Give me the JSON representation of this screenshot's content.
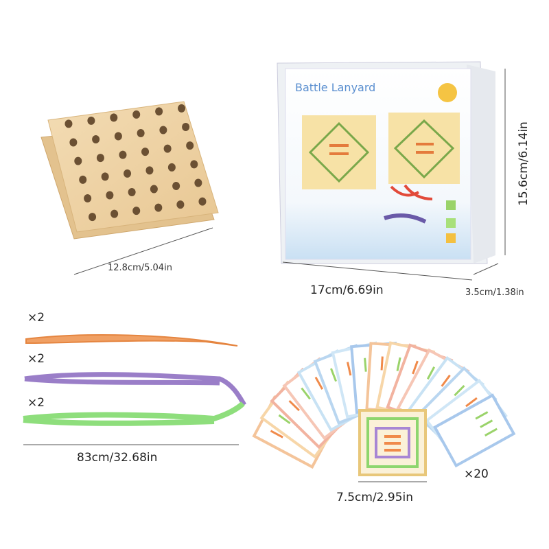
{
  "board": {
    "size_label": "12.8cm/5.04in"
  },
  "box": {
    "title": "Battle Lanyard",
    "width_label": "17cm/6.69in",
    "depth_label": "3.5cm/1.38in",
    "height_label": "15.6cm/6.14in"
  },
  "strings": {
    "items": [
      {
        "count": "×2"
      },
      {
        "count": "×2"
      },
      {
        "count": "×2"
      }
    ],
    "length_label": "83cm/32.68in"
  },
  "cards": {
    "size_label": "7.5cm/2.95in",
    "count": "×20"
  }
}
